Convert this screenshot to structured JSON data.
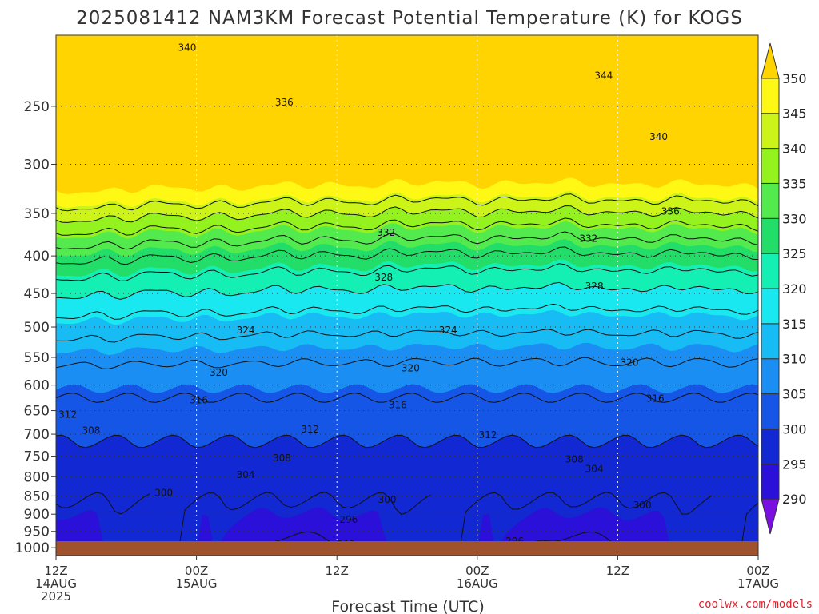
{
  "title": "2025081412 NAM3KM Forecast Potential Temperature (K) for KOGS",
  "credit": "coolwx.com/models",
  "chart_data": {
    "type": "heatmap",
    "title": "2025081412 NAM3KM Forecast Potential Temperature (K) for KOGS",
    "xlabel": "Forecast Time (UTC)",
    "ylabel": "",
    "x_ticks": [
      {
        "hour": 0,
        "lines": [
          "12Z",
          "14AUG",
          "2025"
        ]
      },
      {
        "hour": 12,
        "lines": [
          "00Z",
          "15AUG"
        ]
      },
      {
        "hour": 24,
        "lines": [
          "12Z"
        ]
      },
      {
        "hour": 36,
        "lines": [
          "00Z",
          "16AUG"
        ]
      },
      {
        "hour": 48,
        "lines": [
          "12Z"
        ]
      },
      {
        "hour": 60,
        "lines": [
          "00Z",
          "17AUG"
        ]
      }
    ],
    "xlim": [
      0,
      60
    ],
    "y_ticks": [
      250,
      300,
      350,
      400,
      450,
      500,
      550,
      600,
      650,
      700,
      750,
      800,
      850,
      900,
      950,
      1000
    ],
    "ylim": [
      1025,
      200
    ],
    "log_pressure_axis": true,
    "grid": true,
    "colorbar": {
      "levels": [
        290,
        295,
        300,
        305,
        310,
        315,
        320,
        325,
        330,
        335,
        340,
        345,
        350
      ],
      "colors": [
        "#7a10e0",
        "#2a10d8",
        "#1228d2",
        "#1656e6",
        "#1a8ef2",
        "#18bcf4",
        "#1ae8f0",
        "#14f0b4",
        "#22de68",
        "#52ea4c",
        "#94f21e",
        "#ccf418",
        "#fff814",
        "#ffd400"
      ]
    },
    "contour_levels": [
      292,
      296,
      300,
      304,
      308,
      312,
      316,
      320,
      324,
      328,
      332,
      336,
      340,
      344
    ],
    "contour_labels": [
      {
        "text": "340",
        "hour": 11.2,
        "p": 208
      },
      {
        "text": "344",
        "hour": 46.8,
        "p": 227
      },
      {
        "text": "336",
        "hour": 19.5,
        "p": 247
      },
      {
        "text": "340",
        "hour": 51.5,
        "p": 275
      },
      {
        "text": "332",
        "hour": 28.2,
        "p": 372
      },
      {
        "text": "336",
        "hour": 52.5,
        "p": 348
      },
      {
        "text": "332",
        "hour": 45.5,
        "p": 379
      },
      {
        "text": "328",
        "hour": 28.0,
        "p": 428
      },
      {
        "text": "328",
        "hour": 46.0,
        "p": 440
      },
      {
        "text": "324",
        "hour": 16.2,
        "p": 505
      },
      {
        "text": "324",
        "hour": 33.5,
        "p": 505
      },
      {
        "text": "320",
        "hour": 13.9,
        "p": 577
      },
      {
        "text": "320",
        "hour": 30.3,
        "p": 569
      },
      {
        "text": "320",
        "hour": 49.0,
        "p": 559
      },
      {
        "text": "316",
        "hour": 12.2,
        "p": 629
      },
      {
        "text": "316",
        "hour": 29.2,
        "p": 639
      },
      {
        "text": "316",
        "hour": 51.2,
        "p": 626
      },
      {
        "text": "312",
        "hour": 1.0,
        "p": 658
      },
      {
        "text": "312",
        "hour": 21.7,
        "p": 689
      },
      {
        "text": "312",
        "hour": 36.9,
        "p": 702
      },
      {
        "text": "308",
        "hour": 3.0,
        "p": 692
      },
      {
        "text": "308",
        "hour": 19.3,
        "p": 755
      },
      {
        "text": "308",
        "hour": 44.3,
        "p": 757
      },
      {
        "text": "304",
        "hour": 16.2,
        "p": 795
      },
      {
        "text": "304",
        "hour": 46.0,
        "p": 781
      },
      {
        "text": "300",
        "hour": 9.2,
        "p": 842
      },
      {
        "text": "300",
        "hour": 28.3,
        "p": 860
      },
      {
        "text": "300",
        "hour": 50.1,
        "p": 875
      },
      {
        "text": "296",
        "hour": 25.0,
        "p": 915
      },
      {
        "text": "296",
        "hour": 39.2,
        "p": 980
      },
      {
        "text": "292",
        "hour": 24.8,
        "p": 990
      }
    ]
  }
}
